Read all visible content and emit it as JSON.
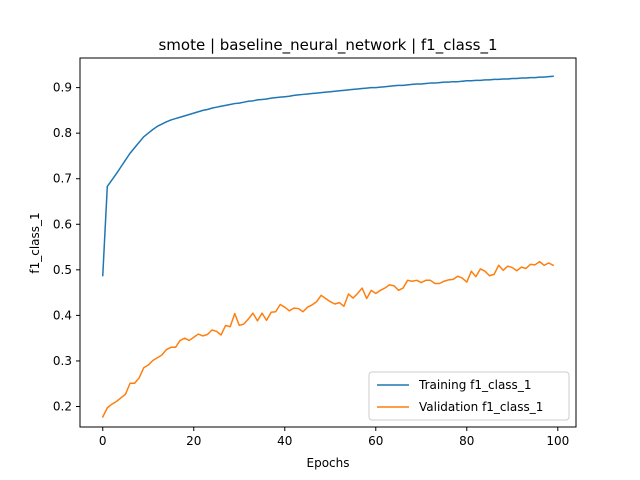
{
  "chart_data": {
    "type": "line",
    "title": "smote | baseline_neural_network | f1_class_1",
    "xlabel": "Epochs",
    "ylabel": "f1_class_1",
    "xlim": [
      -5,
      104
    ],
    "ylim": [
      0.155,
      0.965
    ],
    "xticks": [
      0,
      20,
      40,
      60,
      80,
      100
    ],
    "yticks": [
      0.2,
      0.3,
      0.4,
      0.5,
      0.6,
      0.7,
      0.8,
      0.9
    ],
    "grid": false,
    "legend_position": "lower-right",
    "series": [
      {
        "name": "Training f1_class_1",
        "color": "#1f77b4",
        "x": [
          0,
          1,
          2,
          3,
          4,
          5,
          6,
          7,
          8,
          9,
          10,
          11,
          12,
          13,
          14,
          15,
          16,
          17,
          18,
          19,
          20,
          21,
          22,
          23,
          24,
          25,
          26,
          27,
          28,
          29,
          30,
          31,
          32,
          33,
          34,
          35,
          36,
          37,
          38,
          39,
          40,
          41,
          42,
          43,
          44,
          45,
          46,
          47,
          48,
          49,
          50,
          51,
          52,
          53,
          54,
          55,
          56,
          57,
          58,
          59,
          60,
          61,
          62,
          63,
          64,
          65,
          66,
          67,
          68,
          69,
          70,
          71,
          72,
          73,
          74,
          75,
          76,
          77,
          78,
          79,
          80,
          81,
          82,
          83,
          84,
          85,
          86,
          87,
          88,
          89,
          90,
          91,
          92,
          93,
          94,
          95,
          96,
          97,
          98,
          99
        ],
        "values": [
          0.487,
          0.683,
          0.697,
          0.711,
          0.726,
          0.741,
          0.756,
          0.768,
          0.78,
          0.792,
          0.8,
          0.808,
          0.815,
          0.82,
          0.825,
          0.829,
          0.832,
          0.835,
          0.838,
          0.841,
          0.844,
          0.847,
          0.85,
          0.852,
          0.855,
          0.857,
          0.859,
          0.861,
          0.863,
          0.865,
          0.866,
          0.868,
          0.87,
          0.871,
          0.873,
          0.874,
          0.875,
          0.877,
          0.878,
          0.879,
          0.88,
          0.881,
          0.883,
          0.884,
          0.885,
          0.886,
          0.887,
          0.888,
          0.889,
          0.89,
          0.891,
          0.892,
          0.893,
          0.894,
          0.895,
          0.896,
          0.897,
          0.898,
          0.899,
          0.9,
          0.9,
          0.901,
          0.902,
          0.903,
          0.904,
          0.905,
          0.905,
          0.906,
          0.907,
          0.908,
          0.908,
          0.909,
          0.91,
          0.91,
          0.911,
          0.912,
          0.912,
          0.913,
          0.913,
          0.914,
          0.915,
          0.915,
          0.916,
          0.916,
          0.917,
          0.917,
          0.918,
          0.918,
          0.919,
          0.919,
          0.92,
          0.92,
          0.921,
          0.921,
          0.922,
          0.922,
          0.923,
          0.923,
          0.924,
          0.925
        ]
      },
      {
        "name": "Validation f1_class_1",
        "color": "#ff7f0e",
        "x": [
          0,
          1,
          2,
          3,
          4,
          5,
          6,
          7,
          8,
          9,
          10,
          11,
          12,
          13,
          14,
          15,
          16,
          17,
          18,
          19,
          20,
          21,
          22,
          23,
          24,
          25,
          26,
          27,
          28,
          29,
          30,
          31,
          32,
          33,
          34,
          35,
          36,
          37,
          38,
          39,
          40,
          41,
          42,
          43,
          44,
          45,
          46,
          47,
          48,
          49,
          50,
          51,
          52,
          53,
          54,
          55,
          56,
          57,
          58,
          59,
          60,
          61,
          62,
          63,
          64,
          65,
          66,
          67,
          68,
          69,
          70,
          71,
          72,
          73,
          74,
          75,
          76,
          77,
          78,
          79,
          80,
          81,
          82,
          83,
          84,
          85,
          86,
          87,
          88,
          89,
          90,
          91,
          92,
          93,
          94,
          95,
          96,
          97,
          98,
          99
        ],
        "values": [
          0.177,
          0.197,
          0.205,
          0.211,
          0.219,
          0.227,
          0.251,
          0.251,
          0.263,
          0.285,
          0.291,
          0.301,
          0.307,
          0.313,
          0.325,
          0.33,
          0.33,
          0.345,
          0.35,
          0.345,
          0.352,
          0.359,
          0.355,
          0.358,
          0.368,
          0.365,
          0.357,
          0.378,
          0.375,
          0.404,
          0.378,
          0.381,
          0.392,
          0.405,
          0.388,
          0.405,
          0.389,
          0.407,
          0.408,
          0.424,
          0.418,
          0.41,
          0.416,
          0.415,
          0.408,
          0.418,
          0.423,
          0.43,
          0.444,
          0.437,
          0.43,
          0.425,
          0.428,
          0.42,
          0.447,
          0.438,
          0.448,
          0.46,
          0.437,
          0.455,
          0.448,
          0.455,
          0.46,
          0.467,
          0.465,
          0.455,
          0.46,
          0.477,
          0.475,
          0.477,
          0.472,
          0.477,
          0.477,
          0.47,
          0.47,
          0.475,
          0.478,
          0.479,
          0.486,
          0.482,
          0.473,
          0.497,
          0.485,
          0.502,
          0.497,
          0.487,
          0.49,
          0.51,
          0.499,
          0.508,
          0.505,
          0.498,
          0.506,
          0.503,
          0.512,
          0.511,
          0.518,
          0.51,
          0.515,
          0.51
        ]
      }
    ]
  }
}
